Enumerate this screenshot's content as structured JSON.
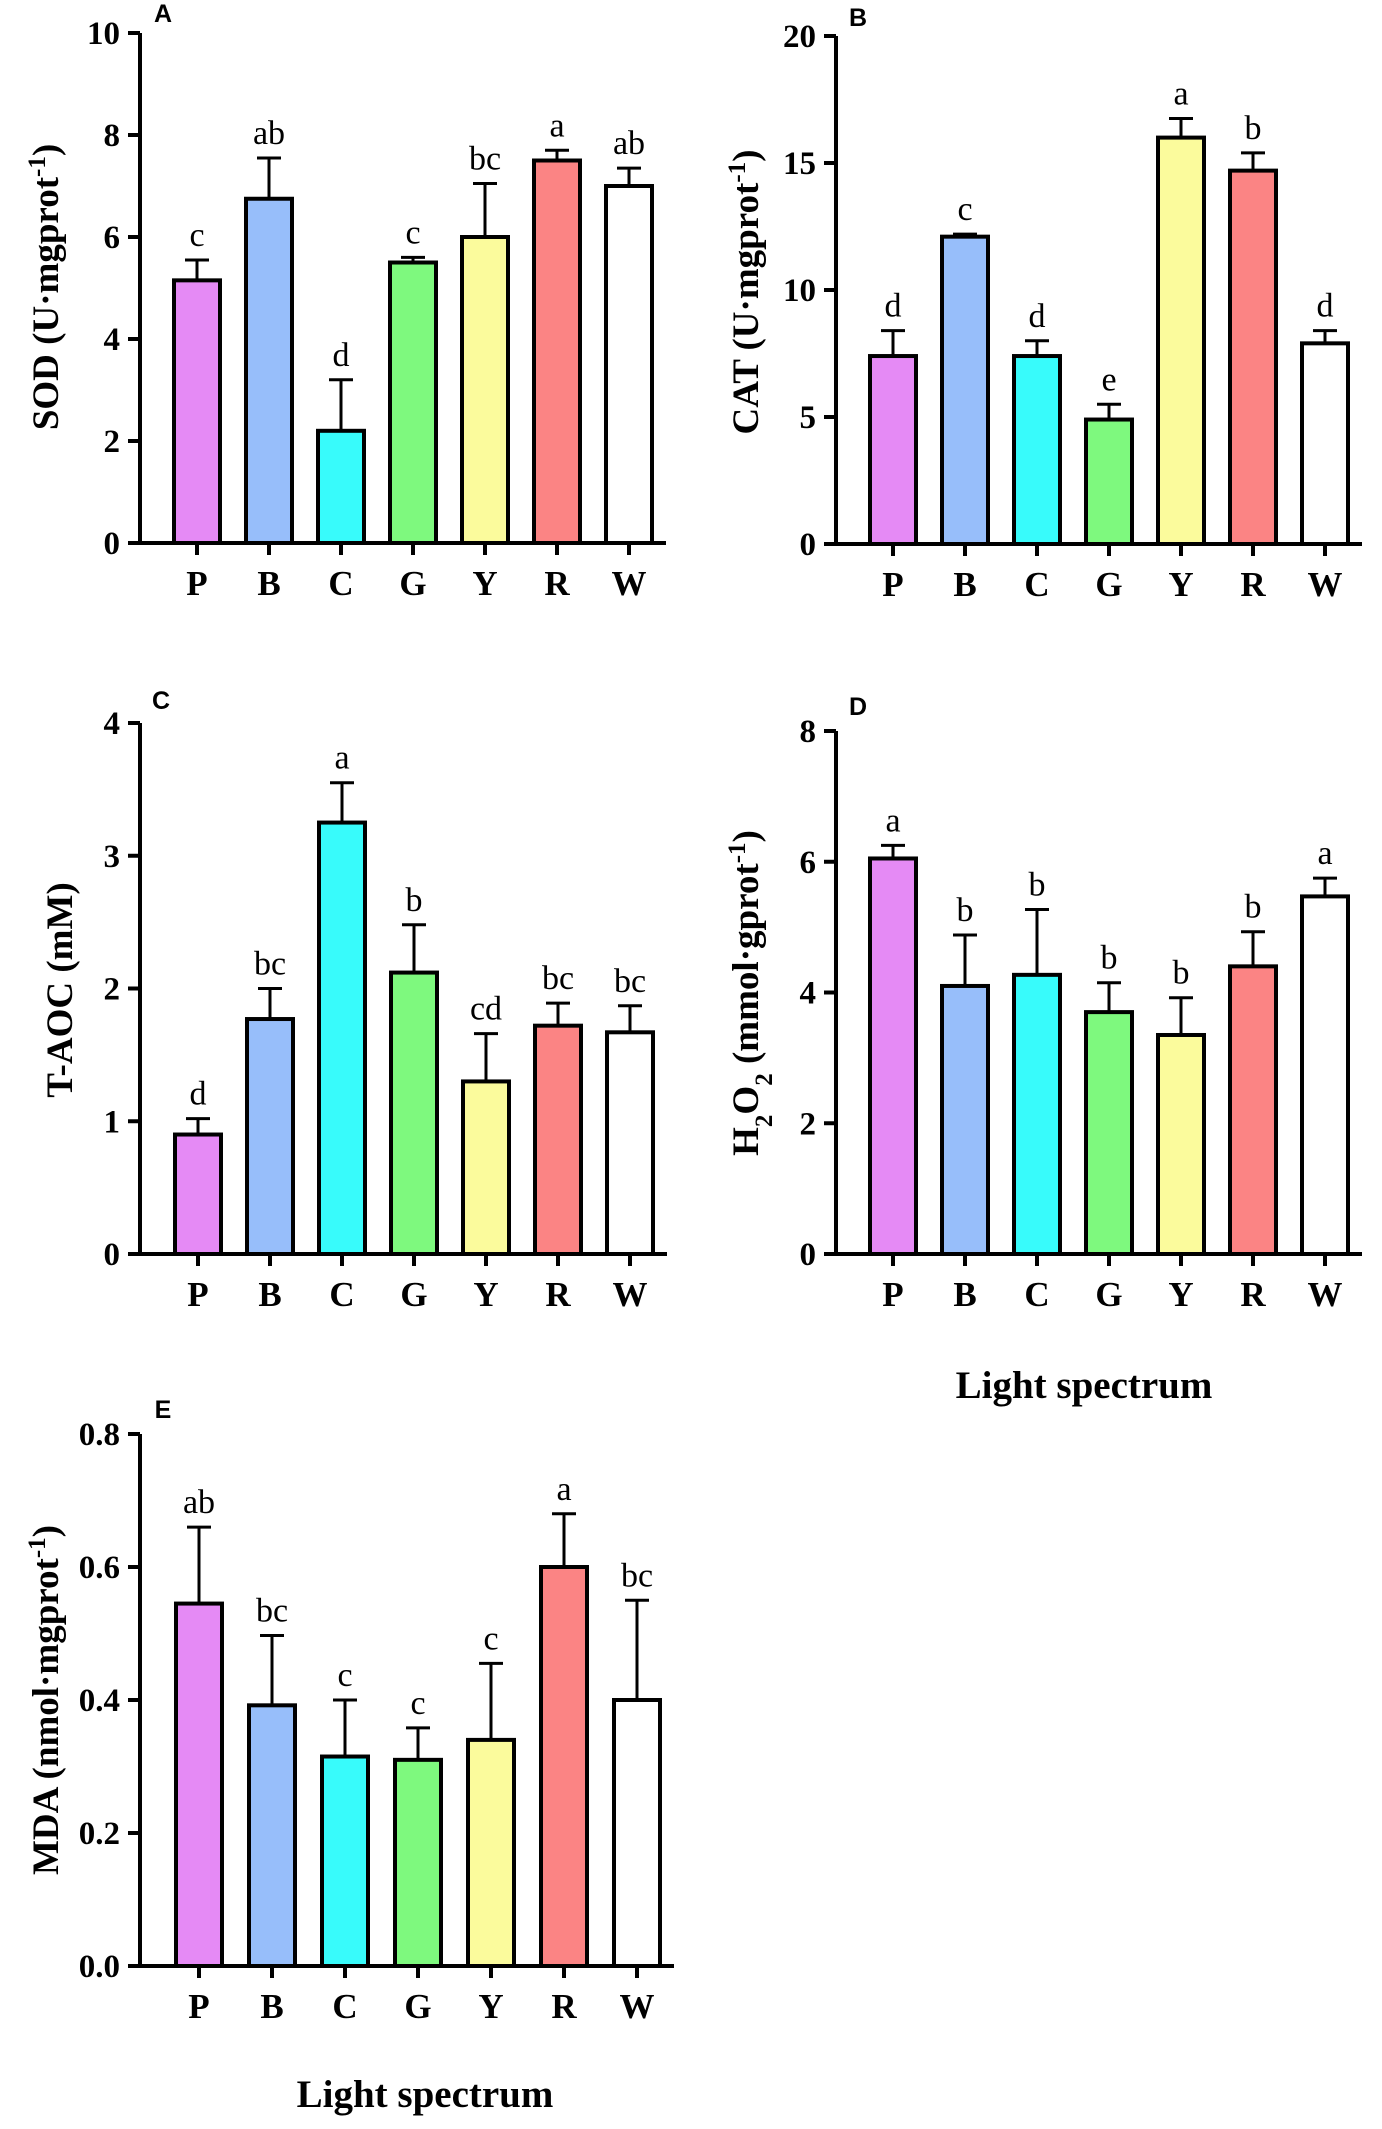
{
  "colors": {
    "P": "#e58af5",
    "B": "#97befa",
    "C": "#38fbfb",
    "G": "#7ef97e",
    "Y": "#fbfb9c",
    "R": "#fb8484",
    "W": "#ffffff",
    "stroke": "#000000"
  },
  "x_axis_label": "Light spectrum",
  "chart_data": [
    {
      "type": "bar",
      "panel": "A",
      "ylabel": "SOD (U·mgprot⁻¹)",
      "ylabel_base": "SOD (U·mgprot",
      "ylabel_sup": "-1",
      "ylabel_tail": ")",
      "categories": [
        "P",
        "B",
        "C",
        "G",
        "Y",
        "R",
        "W"
      ],
      "values": [
        5.15,
        6.75,
        2.2,
        5.5,
        6.0,
        7.5,
        7.0
      ],
      "errors": [
        0.4,
        0.8,
        1.0,
        0.1,
        1.05,
        0.2,
        0.35
      ],
      "significance": [
        "c",
        "ab",
        "d",
        "c",
        "bc",
        "a",
        "ab"
      ],
      "ylim": [
        0,
        10
      ],
      "yticks": [
        0,
        2,
        4,
        6,
        8,
        10
      ],
      "ytick_labels": [
        "0",
        "2",
        "4",
        "6",
        "8",
        "10"
      ],
      "xlabel": ""
    },
    {
      "type": "bar",
      "panel": "B",
      "ylabel": "CAT (U·mgprot⁻¹)",
      "ylabel_base": "CAT (U·mgprot",
      "ylabel_sup": "-1",
      "ylabel_tail": ")",
      "categories": [
        "P",
        "B",
        "C",
        "G",
        "Y",
        "R",
        "W"
      ],
      "values": [
        7.4,
        12.1,
        7.4,
        4.9,
        16.0,
        14.7,
        7.9
      ],
      "errors": [
        1.0,
        0.1,
        0.6,
        0.6,
        0.75,
        0.7,
        0.5
      ],
      "significance": [
        "d",
        "c",
        "d",
        "e",
        "a",
        "b",
        "d"
      ],
      "ylim": [
        0,
        20
      ],
      "yticks": [
        0,
        5,
        10,
        15,
        20
      ],
      "ytick_labels": [
        "0",
        "5",
        "10",
        "15",
        "20"
      ],
      "xlabel": ""
    },
    {
      "type": "bar",
      "panel": "C",
      "ylabel": "T-AOC (mM)",
      "ylabel_base": "T-AOC (mM)",
      "ylabel_sup": "",
      "ylabel_tail": "",
      "categories": [
        "P",
        "B",
        "C",
        "G",
        "Y",
        "R",
        "W"
      ],
      "values": [
        0.9,
        1.77,
        3.25,
        2.12,
        1.3,
        1.72,
        1.67
      ],
      "errors": [
        0.12,
        0.23,
        0.3,
        0.36,
        0.36,
        0.17,
        0.2
      ],
      "significance": [
        "d",
        "bc",
        "a",
        "b",
        "cd",
        "bc",
        "bc"
      ],
      "ylim": [
        0,
        4
      ],
      "yticks": [
        0,
        1,
        2,
        3,
        4
      ],
      "ytick_labels": [
        "0",
        "1",
        "2",
        "3",
        "4"
      ],
      "xlabel": ""
    },
    {
      "type": "bar",
      "panel": "D",
      "ylabel": "H₂O₂ (mmol·gprot⁻¹)",
      "ylabel_base": "H",
      "ylabel_sub1": "2",
      "ylabel_mid": "O",
      "ylabel_sub2": "2",
      "ylabel_rest": " (mmol·gprot",
      "ylabel_sup": "-1",
      "ylabel_tail": ")",
      "categories": [
        "P",
        "B",
        "C",
        "G",
        "Y",
        "R",
        "W"
      ],
      "values": [
        6.05,
        4.1,
        4.27,
        3.7,
        3.35,
        4.4,
        5.47
      ],
      "errors": [
        0.2,
        0.78,
        1.0,
        0.45,
        0.57,
        0.53,
        0.28
      ],
      "significance": [
        "a",
        "b",
        "b",
        "b",
        "b",
        "b",
        "a"
      ],
      "ylim": [
        0,
        8
      ],
      "yticks": [
        0,
        2,
        4,
        6,
        8
      ],
      "ytick_labels": [
        "0",
        "2",
        "4",
        "6",
        "8"
      ],
      "xlabel": "Light spectrum"
    },
    {
      "type": "bar",
      "panel": "E",
      "ylabel": "MDA (nmol·mgprot⁻¹)",
      "ylabel_base": "MDA (nmol·mgprot",
      "ylabel_sup": "-1",
      "ylabel_tail": ")",
      "categories": [
        "P",
        "B",
        "C",
        "G",
        "Y",
        "R",
        "W"
      ],
      "values": [
        0.545,
        0.392,
        0.315,
        0.31,
        0.34,
        0.6,
        0.4
      ],
      "errors": [
        0.115,
        0.105,
        0.085,
        0.048,
        0.115,
        0.08,
        0.15
      ],
      "significance": [
        "ab",
        "bc",
        "c",
        "c",
        "c",
        "a",
        "bc"
      ],
      "ylim": [
        0,
        0.8
      ],
      "yticks": [
        0,
        0.2,
        0.4,
        0.6,
        0.8
      ],
      "ytick_labels": [
        "0.0",
        "0.2",
        "0.4",
        "0.6",
        "0.8"
      ],
      "xlabel": "Light spectrum"
    }
  ]
}
